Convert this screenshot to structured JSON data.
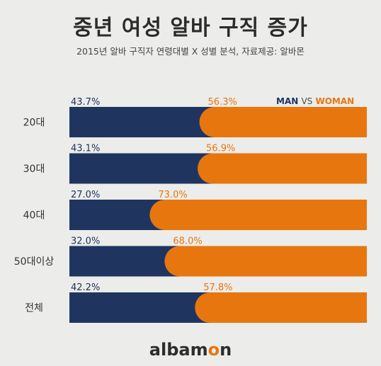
{
  "header": {
    "title": "중년 여성 알바 구직 증가",
    "subtitle": "2015년 알바 구직자 연령대별 X 성별 분석, 자료제공: 알바몬"
  },
  "legend": {
    "man": "MAN",
    "vs": "VS",
    "woman": "WOMAN"
  },
  "footer": {
    "logo_a": "albam",
    "logo_o": "o",
    "logo_b": "n"
  },
  "colors": {
    "man": "#1f3560",
    "woman": "#e8760f",
    "background": "#ececea"
  },
  "chart_data": {
    "type": "bar",
    "orientation": "horizontal-stacked-percent",
    "categories": [
      "20대",
      "30대",
      "40대",
      "50대이상",
      "전체"
    ],
    "series": [
      {
        "name": "MAN",
        "values": [
          43.7,
          43.1,
          27.0,
          32.0,
          42.2
        ],
        "labels": [
          "43.7%",
          "43.1%",
          "27.0%",
          "32.0%",
          "42.2%"
        ]
      },
      {
        "name": "WOMAN",
        "values": [
          56.3,
          56.9,
          73.0,
          68.0,
          57.8
        ],
        "labels": [
          "56.3%",
          "56.9%",
          "73.0%",
          "68.0%",
          "57.8%"
        ]
      }
    ],
    "xlim": [
      0,
      100
    ],
    "grid": false,
    "legend_position": "top-right"
  }
}
